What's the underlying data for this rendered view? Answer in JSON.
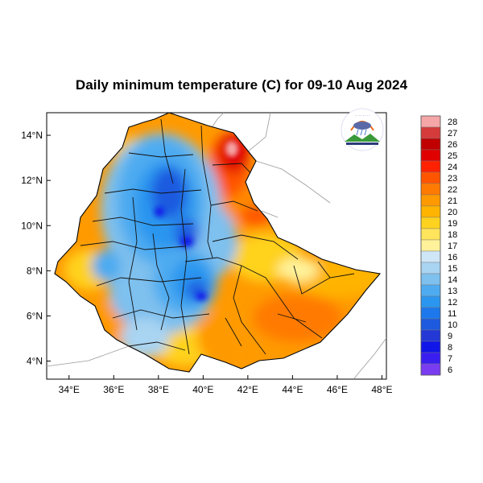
{
  "title": "Daily minimum temperature (C) for 09-10 Aug 2024",
  "map": {
    "lon_range": [
      33,
      48.2
    ],
    "lat_range": [
      3.2,
      15
    ],
    "lon_ticks": [
      {
        "value": 34,
        "label": "34°E"
      },
      {
        "value": 36,
        "label": "36°E"
      },
      {
        "value": 38,
        "label": "38°E"
      },
      {
        "value": 40,
        "label": "40°E"
      },
      {
        "value": 42,
        "label": "42°E"
      },
      {
        "value": 44,
        "label": "44°E"
      },
      {
        "value": 46,
        "label": "46°E"
      },
      {
        "value": 48,
        "label": "48°E"
      }
    ],
    "lat_ticks": [
      {
        "value": 14,
        "label": "14°N"
      },
      {
        "value": 12,
        "label": "12°N"
      },
      {
        "value": 10,
        "label": "10°N"
      },
      {
        "value": 8,
        "label": "8°N"
      },
      {
        "value": 6,
        "label": "6°N"
      },
      {
        "value": 4,
        "label": "4°N"
      }
    ]
  },
  "colorbar": {
    "levels": [
      {
        "label": "28",
        "color": "#f5a6a6"
      },
      {
        "label": "27",
        "color": "#d53b3b"
      },
      {
        "label": "26",
        "color": "#c00000"
      },
      {
        "label": "25",
        "color": "#e00000"
      },
      {
        "label": "24",
        "color": "#ff2200"
      },
      {
        "label": "23",
        "color": "#ff5500"
      },
      {
        "label": "22",
        "color": "#ff7a00"
      },
      {
        "label": "21",
        "color": "#ff9900"
      },
      {
        "label": "20",
        "color": "#ffb400"
      },
      {
        "label": "19",
        "color": "#ffd21f"
      },
      {
        "label": "18",
        "color": "#ffe45c"
      },
      {
        "label": "17",
        "color": "#fff29a"
      },
      {
        "label": "16",
        "color": "#cfe6f7"
      },
      {
        "label": "15",
        "color": "#a9d4f2"
      },
      {
        "label": "14",
        "color": "#7ec0ee"
      },
      {
        "label": "13",
        "color": "#4eabf0"
      },
      {
        "label": "12",
        "color": "#2b96ef"
      },
      {
        "label": "11",
        "color": "#1c78ec"
      },
      {
        "label": "10",
        "color": "#1d5ae0"
      },
      {
        "label": "9",
        "color": "#2438d6"
      },
      {
        "label": "8",
        "color": "#1016e8"
      },
      {
        "label": "7",
        "color": "#3a1ef0"
      },
      {
        "label": "6",
        "color": "#7a3cf0"
      }
    ]
  },
  "colors": {
    "cold_core": "#1c2fd2",
    "blue": "#3d8ff0",
    "light_blue": "#8fc8f2",
    "yellow": "#ffd52a",
    "orange": "#ff8a00",
    "red": "#e00000"
  }
}
